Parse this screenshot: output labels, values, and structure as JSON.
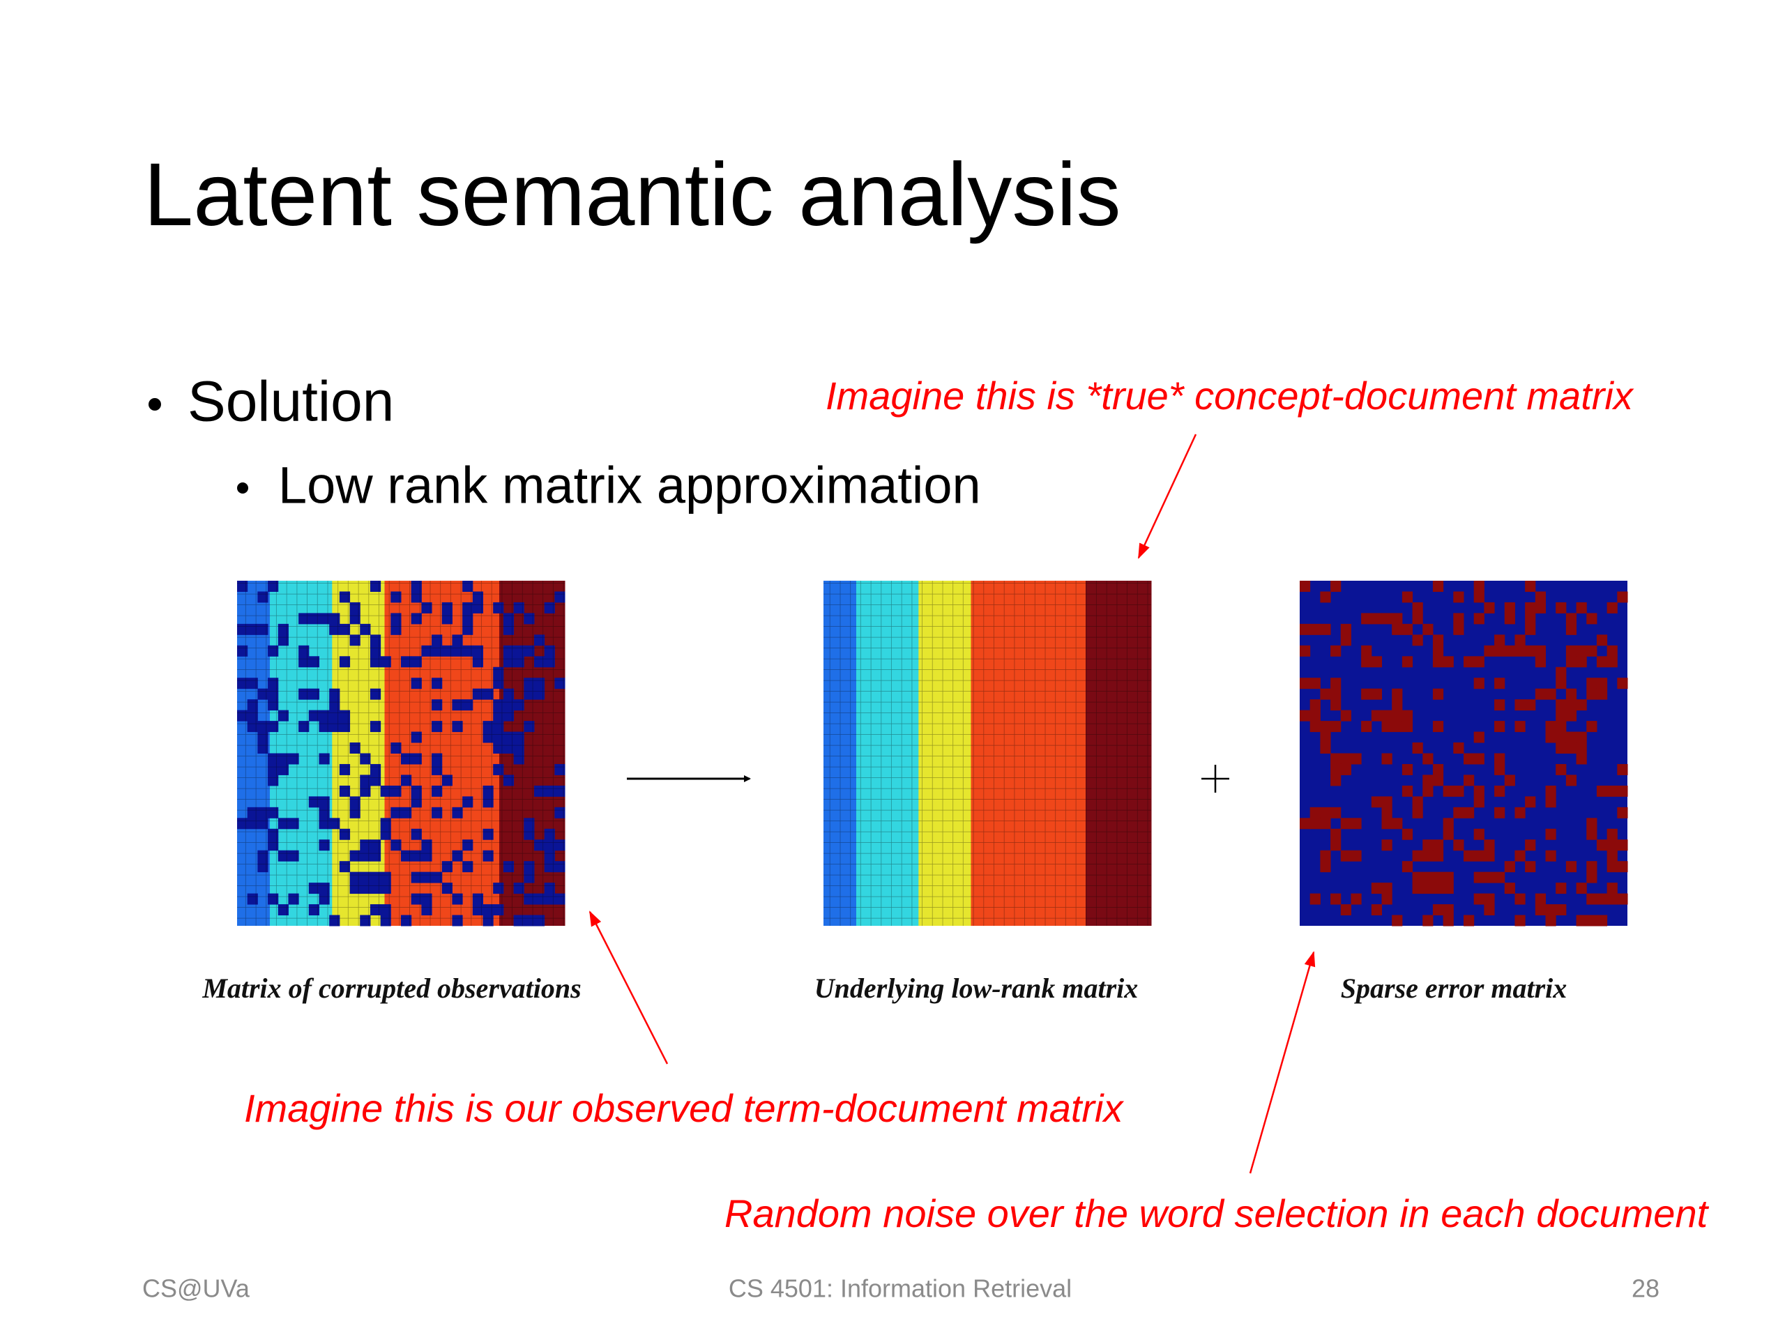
{
  "slide": {
    "title": "Latent semantic analysis",
    "bullets": [
      {
        "text": "Solution",
        "sub": [
          "Low rank matrix approximation"
        ]
      }
    ],
    "annotations": {
      "true_matrix": "Imagine this is *true* concept-document matrix",
      "observed_matrix": "Imagine this is our observed term-document matrix",
      "noise": "Random noise over the word selection in each document"
    },
    "figure": {
      "captions": [
        "Matrix of corrupted observations",
        "Underlying low-rank matrix",
        "Sparse error matrix"
      ]
    },
    "footer": {
      "left": "CS@UVa",
      "center": "CS 4501: Information Retrieval",
      "page": "28"
    }
  }
}
